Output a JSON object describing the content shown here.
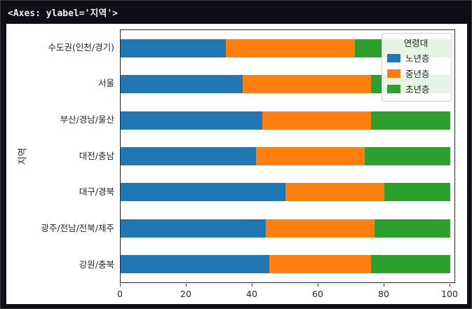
{
  "terminal": {
    "repr_text": "<Axes: ylabel='지역'>"
  },
  "colors": {
    "background": "#0e0e16",
    "figure": "#ffffff",
    "terminal_text": "#f2f2f2",
    "axis_text": "#262626"
  },
  "chart_data": {
    "type": "bar",
    "orientation": "horizontal",
    "stacked": true,
    "title": "",
    "xlabel": "",
    "ylabel": "지역",
    "xlim": [
      0,
      100
    ],
    "xticks": [
      0,
      20,
      40,
      60,
      80,
      100
    ],
    "grid": false,
    "categories": [
      "수도권(인천/경기)",
      "서울",
      "부산/경남/울산",
      "대전/충남",
      "대구/경북",
      "광주/전남/전북/제주",
      "강원/충북"
    ],
    "legend": {
      "title": "연령대",
      "position": "upper right"
    },
    "series": [
      {
        "name": "노년층",
        "color": "#1f77b4",
        "values": [
          32,
          37,
          43,
          41,
          50,
          44,
          45
        ]
      },
      {
        "name": "중년층",
        "color": "#ff7f0e",
        "values": [
          39,
          39,
          33,
          33,
          30,
          33,
          31
        ]
      },
      {
        "name": "초년층",
        "color": "#2ca02c",
        "values": [
          29,
          24,
          24,
          26,
          20,
          23,
          24
        ]
      }
    ]
  }
}
